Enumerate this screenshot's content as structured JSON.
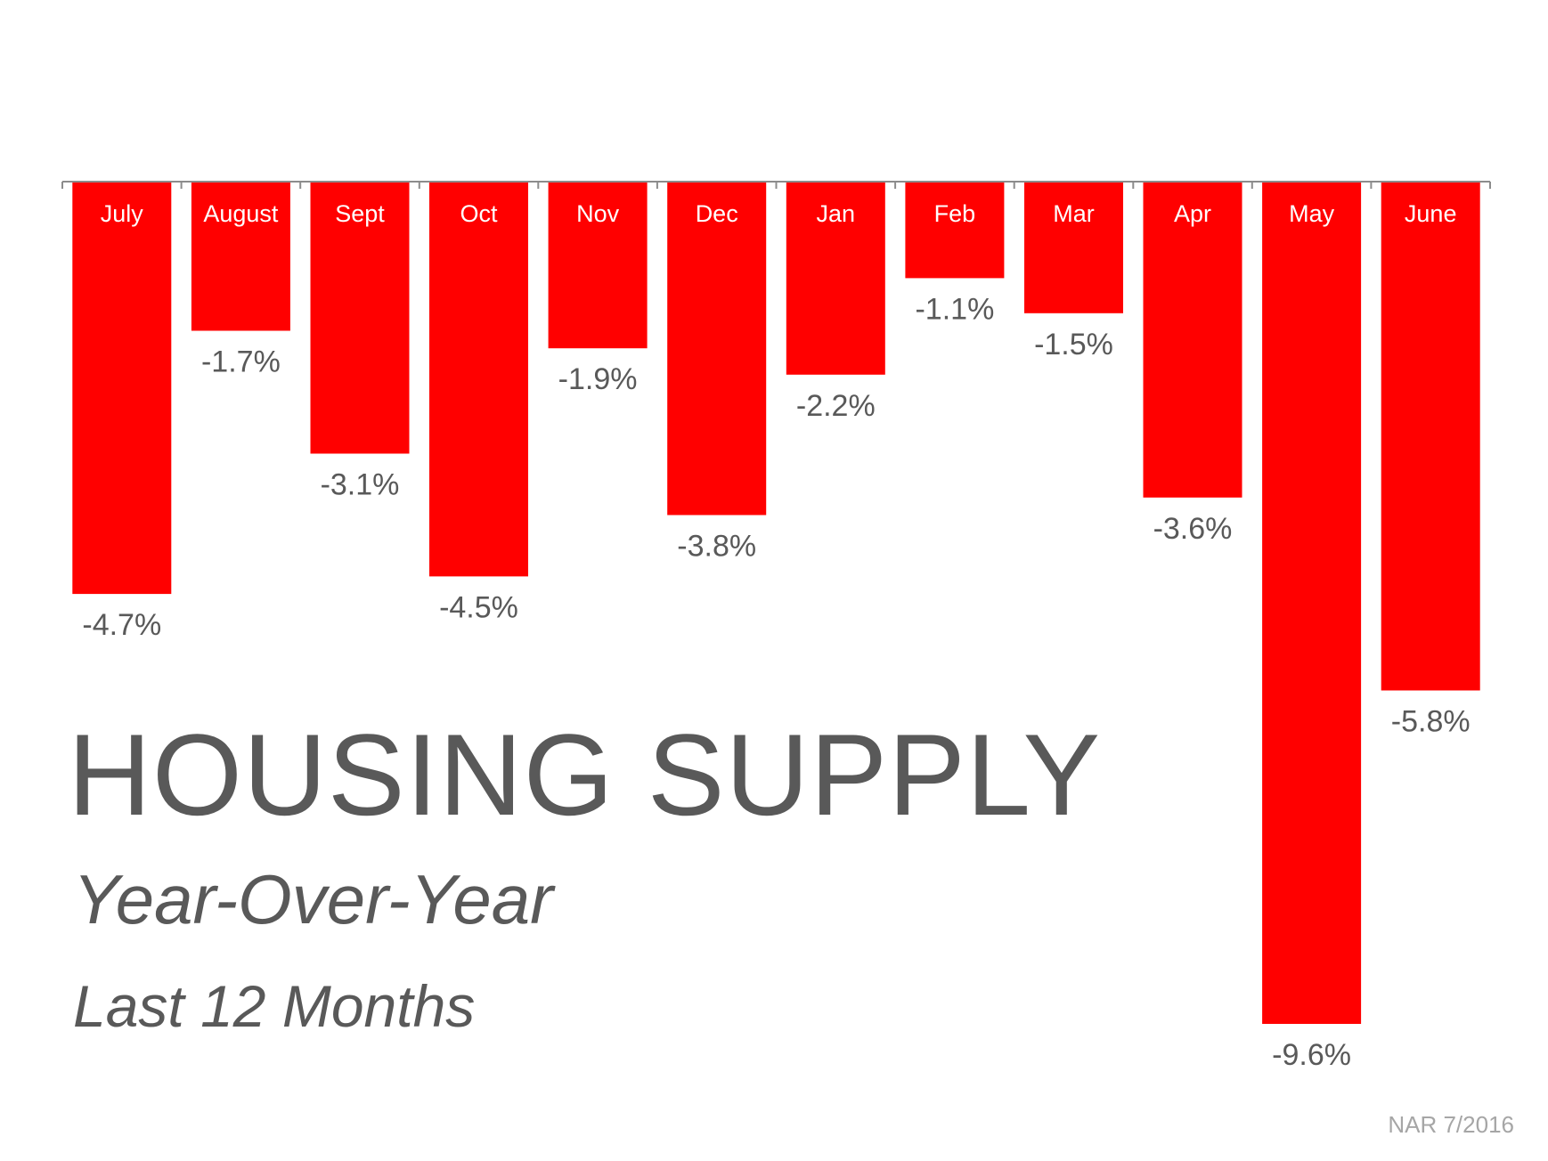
{
  "title": "HOUSING SUPPLY",
  "subtitle": "Year-Over-Year",
  "subtitle2": "Last 12 Months",
  "source": "NAR 7/2016",
  "colors": {
    "bar": "#ff0000",
    "text": "#595959",
    "axis": "#8c8c8c",
    "source": "#a6a6a6"
  },
  "chart_data": {
    "type": "bar",
    "categories": [
      "July",
      "August",
      "Sept",
      "Oct",
      "Nov",
      "Dec",
      "Jan",
      "Feb",
      "Mar",
      "Apr",
      "May",
      "June"
    ],
    "values": [
      -4.7,
      -1.7,
      -3.1,
      -4.5,
      -1.9,
      -3.8,
      -2.2,
      -1.1,
      -1.5,
      -3.6,
      -9.6,
      -5.8
    ],
    "value_labels": [
      "-4.7%",
      "-1.7%",
      "-3.1%",
      "-4.5%",
      "-1.9%",
      "-3.8%",
      "-2.2%",
      "-1.1%",
      "-1.5%",
      "-3.6%",
      "-9.6%",
      "-5.8%"
    ],
    "ylim": [
      -9.6,
      0
    ],
    "grid": false,
    "legend": "none"
  }
}
